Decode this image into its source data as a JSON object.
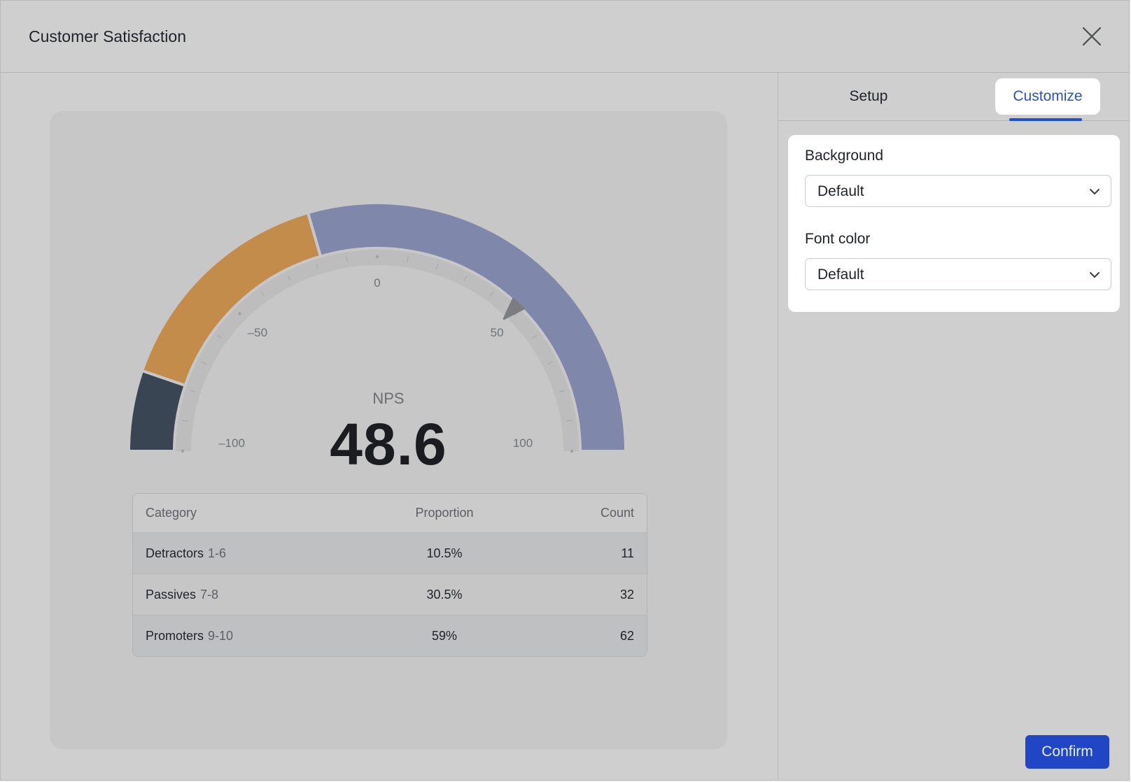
{
  "dialog": {
    "title": "Customer Satisfaction"
  },
  "gauge": {
    "label": "NPS",
    "value": "48.6",
    "value_number": 48.6,
    "min": -100,
    "max": 100,
    "tick_labels": [
      "–100",
      "–50",
      "0",
      "50",
      "100"
    ],
    "tick_values": [
      -100,
      -50,
      0,
      50,
      100
    ],
    "segments": [
      {
        "name": "Detractors",
        "fraction": 0.105,
        "color": "#3a4553"
      },
      {
        "name": "Passives",
        "fraction": 0.305,
        "color": "#c48c4a"
      },
      {
        "name": "Promoters",
        "fraction": 0.59,
        "color": "#7f88aa"
      }
    ]
  },
  "table": {
    "headers": {
      "category": "Category",
      "proportion": "Proportion",
      "count": "Count"
    },
    "rows": [
      {
        "category": "Detractors",
        "range": "1-6",
        "proportion": "10.5%",
        "count": "11"
      },
      {
        "category": "Passives",
        "range": "7-8",
        "proportion": "30.5%",
        "count": "32"
      },
      {
        "category": "Promoters",
        "range": "9-10",
        "proportion": "59%",
        "count": "62"
      }
    ]
  },
  "tabs": {
    "setup": "Setup",
    "customize": "Customize",
    "active": "customize"
  },
  "settings": {
    "background": {
      "label": "Background",
      "value": "Default"
    },
    "font_color": {
      "label": "Font color",
      "value": "Default"
    }
  },
  "footer": {
    "confirm_label": "Confirm"
  },
  "colors": {
    "accent": "#2551d6",
    "button": "#2046c6"
  }
}
